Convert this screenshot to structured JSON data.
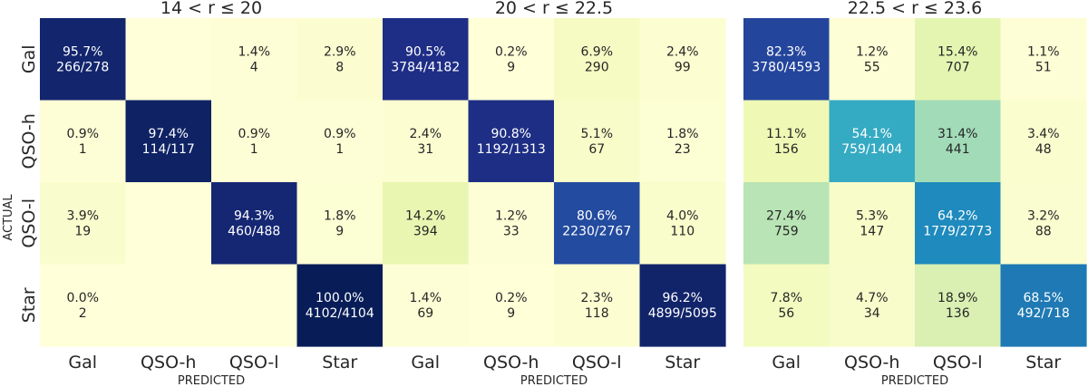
{
  "figure": {
    "shared_ylabel": "ACTUAL"
  },
  "chart_data": [
    {
      "type": "heatmap",
      "title": "14 < r ≤ 20",
      "xlabel": "PREDICTED",
      "ylabel": "ACTUAL",
      "x_categories": [
        "Gal",
        "QSO-h",
        "QSO-l",
        "Star"
      ],
      "y_categories": [
        "Gal",
        "QSO-h",
        "QSO-l",
        "Star"
      ],
      "cells": [
        [
          {
            "pct": "95.7%",
            "count": "266/278",
            "value": 95.7
          },
          {
            "pct": "",
            "count": "",
            "value": 0
          },
          {
            "pct": "1.4%",
            "count": "4",
            "value": 1.4
          },
          {
            "pct": "2.9%",
            "count": "8",
            "value": 2.9
          }
        ],
        [
          {
            "pct": "0.9%",
            "count": "1",
            "value": 0.9
          },
          {
            "pct": "97.4%",
            "count": "114/117",
            "value": 97.4
          },
          {
            "pct": "0.9%",
            "count": "1",
            "value": 0.9
          },
          {
            "pct": "0.9%",
            "count": "1",
            "value": 0.9
          }
        ],
        [
          {
            "pct": "3.9%",
            "count": "19",
            "value": 3.9
          },
          {
            "pct": "",
            "count": "",
            "value": 0
          },
          {
            "pct": "94.3%",
            "count": "460/488",
            "value": 94.3
          },
          {
            "pct": "1.8%",
            "count": "9",
            "value": 1.8
          }
        ],
        [
          {
            "pct": "0.0%",
            "count": "2",
            "value": 0.0
          },
          {
            "pct": "",
            "count": "",
            "value": 0
          },
          {
            "pct": "",
            "count": "",
            "value": 0
          },
          {
            "pct": "100.0%",
            "count": "4102/4104",
            "value": 100.0
          }
        ]
      ]
    },
    {
      "type": "heatmap",
      "title": "20 < r ≤ 22.5",
      "xlabel": "PREDICTED",
      "ylabel": "",
      "x_categories": [
        "Gal",
        "QSO-h",
        "QSO-l",
        "Star"
      ],
      "y_categories": [
        "Gal",
        "QSO-h",
        "QSO-l",
        "Star"
      ],
      "cells": [
        [
          {
            "pct": "90.5%",
            "count": "3784/4182",
            "value": 90.5
          },
          {
            "pct": "0.2%",
            "count": "9",
            "value": 0.2
          },
          {
            "pct": "6.9%",
            "count": "290",
            "value": 6.9
          },
          {
            "pct": "2.4%",
            "count": "99",
            "value": 2.4
          }
        ],
        [
          {
            "pct": "2.4%",
            "count": "31",
            "value": 2.4
          },
          {
            "pct": "90.8%",
            "count": "1192/1313",
            "value": 90.8
          },
          {
            "pct": "5.1%",
            "count": "67",
            "value": 5.1
          },
          {
            "pct": "1.8%",
            "count": "23",
            "value": 1.8
          }
        ],
        [
          {
            "pct": "14.2%",
            "count": "394",
            "value": 14.2
          },
          {
            "pct": "1.2%",
            "count": "33",
            "value": 1.2
          },
          {
            "pct": "80.6%",
            "count": "2230/2767",
            "value": 80.6
          },
          {
            "pct": "4.0%",
            "count": "110",
            "value": 4.0
          }
        ],
        [
          {
            "pct": "1.4%",
            "count": "69",
            "value": 1.4
          },
          {
            "pct": "0.2%",
            "count": "9",
            "value": 0.2
          },
          {
            "pct": "2.3%",
            "count": "118",
            "value": 2.3
          },
          {
            "pct": "96.2%",
            "count": "4899/5095",
            "value": 96.2
          }
        ]
      ]
    },
    {
      "type": "heatmap",
      "title": "22.5 < r ≤ 23.6",
      "xlabel": "PREDICTED",
      "ylabel": "",
      "x_categories": [
        "Gal",
        "QSO-h",
        "QSO-l",
        "Star"
      ],
      "y_categories": [
        "Gal",
        "QSO-h",
        "QSO-l",
        "Star"
      ],
      "cells": [
        [
          {
            "pct": "82.3%",
            "count": "3780/4593",
            "value": 82.3
          },
          {
            "pct": "1.2%",
            "count": "55",
            "value": 1.2
          },
          {
            "pct": "15.4%",
            "count": "707",
            "value": 15.4
          },
          {
            "pct": "1.1%",
            "count": "51",
            "value": 1.1
          }
        ],
        [
          {
            "pct": "11.1%",
            "count": "156",
            "value": 11.1
          },
          {
            "pct": "54.1%",
            "count": "759/1404",
            "value": 54.1
          },
          {
            "pct": "31.4%",
            "count": "441",
            "value": 31.4
          },
          {
            "pct": "3.4%",
            "count": "48",
            "value": 3.4
          }
        ],
        [
          {
            "pct": "27.4%",
            "count": "759",
            "value": 27.4
          },
          {
            "pct": "5.3%",
            "count": "147",
            "value": 5.3
          },
          {
            "pct": "64.2%",
            "count": "1779/2773",
            "value": 64.2
          },
          {
            "pct": "3.2%",
            "count": "88",
            "value": 3.2
          }
        ],
        [
          {
            "pct": "7.8%",
            "count": "56",
            "value": 7.8
          },
          {
            "pct": "4.7%",
            "count": "34",
            "value": 4.7
          },
          {
            "pct": "18.9%",
            "count": "136",
            "value": 18.9
          },
          {
            "pct": "68.5%",
            "count": "492/718",
            "value": 68.5
          }
        ]
      ]
    }
  ],
  "colormap": {
    "name": "YlGnBu",
    "stops": [
      {
        "v": 0.0,
        "color": "#ffffd9"
      },
      {
        "v": 0.125,
        "color": "#edf8b1"
      },
      {
        "v": 0.25,
        "color": "#c7e9b4"
      },
      {
        "v": 0.375,
        "color": "#7fcdbb"
      },
      {
        "v": 0.5,
        "color": "#41b6c4"
      },
      {
        "v": 0.625,
        "color": "#1d91c0"
      },
      {
        "v": 0.75,
        "color": "#225ea8"
      },
      {
        "v": 0.875,
        "color": "#253494"
      },
      {
        "v": 1.0,
        "color": "#081d58"
      }
    ],
    "dark_text_color": "#262626",
    "light_text_color": "#ffffff"
  }
}
